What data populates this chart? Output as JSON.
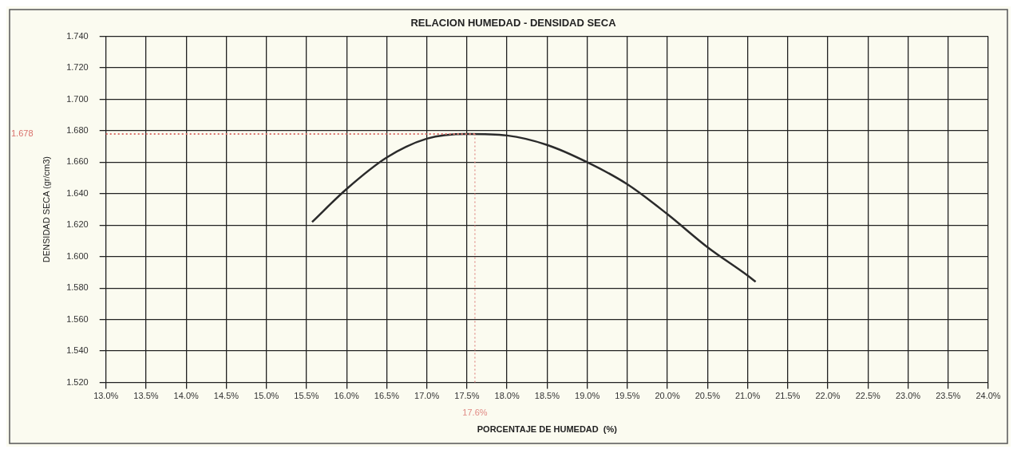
{
  "chart_data": {
    "type": "line",
    "title": "RELACION HUMEDAD - DENSIDAD SECA",
    "xlabel": "PORCENTAJE DE HUMEDAD  (%)",
    "ylabel": "DENSIDAD SECA (gr/cm3)",
    "x": [
      15.57,
      16.0,
      16.5,
      17.0,
      17.5,
      18.0,
      18.5,
      19.0,
      19.5,
      20.0,
      20.5,
      21.0,
      21.1
    ],
    "series": [
      {
        "color": "#2b2b2b",
        "values": [
          1.622,
          1.643,
          1.663,
          1.675,
          1.678,
          1.677,
          1.671,
          1.66,
          1.646,
          1.627,
          1.606,
          1.588,
          1.584
        ]
      }
    ],
    "xlim": [
      13,
      24
    ],
    "xticks": [
      {
        "value": 13,
        "label": "13.0%"
      },
      {
        "value": 13.5,
        "label": "13.5%"
      },
      {
        "value": 14,
        "label": "14.0%"
      },
      {
        "value": 14.5,
        "label": "14.5%"
      },
      {
        "value": 15,
        "label": "15.0%"
      },
      {
        "value": 15.5,
        "label": "15.5%"
      },
      {
        "value": 16,
        "label": "16.0%"
      },
      {
        "value": 16.5,
        "label": "16.5%"
      },
      {
        "value": 17,
        "label": "17.0%"
      },
      {
        "value": 17.5,
        "label": "17.5%"
      },
      {
        "value": 18,
        "label": "18.0%"
      },
      {
        "value": 18.5,
        "label": "18.5%"
      },
      {
        "value": 19,
        "label": "19.0%"
      },
      {
        "value": 19.5,
        "label": "19.5%"
      },
      {
        "value": 20,
        "label": "20.0%"
      },
      {
        "value": 20.5,
        "label": "20.5%"
      },
      {
        "value": 21,
        "label": "21.0%"
      },
      {
        "value": 21.5,
        "label": "21.5%"
      },
      {
        "value": 22,
        "label": "22.0%"
      },
      {
        "value": 22.5,
        "label": "22.5%"
      },
      {
        "value": 23,
        "label": "23.0%"
      },
      {
        "value": 23.5,
        "label": "23.5%"
      },
      {
        "value": 24,
        "label": "24.0%"
      }
    ],
    "ylim": [
      1.52,
      1.74
    ],
    "yticks": [
      {
        "value": 1.52,
        "label": "1.520"
      },
      {
        "value": 1.54,
        "label": "1.540"
      },
      {
        "value": 1.56,
        "label": "1.560"
      },
      {
        "value": 1.58,
        "label": "1.580"
      },
      {
        "value": 1.6,
        "label": "1.600"
      },
      {
        "value": 1.62,
        "label": "1.620"
      },
      {
        "value": 1.64,
        "label": "1.640"
      },
      {
        "value": 1.66,
        "label": "1.660"
      },
      {
        "value": 1.68,
        "label": "1.680"
      },
      {
        "value": 1.7,
        "label": "1.700"
      },
      {
        "value": 1.72,
        "label": "1.720"
      },
      {
        "value": 1.74,
        "label": "1.740"
      }
    ],
    "ref_lines": [
      {
        "axis": "y",
        "value": 1.678,
        "label": "1.678",
        "color": "#d9706a",
        "line_style": "dotted"
      },
      {
        "axis": "x",
        "value": 17.6,
        "label": "17.6%",
        "color": "#e08a84",
        "line_style": "dotted"
      }
    ],
    "grid": true,
    "marker": "none",
    "line_style": "solid",
    "legend": false
  }
}
